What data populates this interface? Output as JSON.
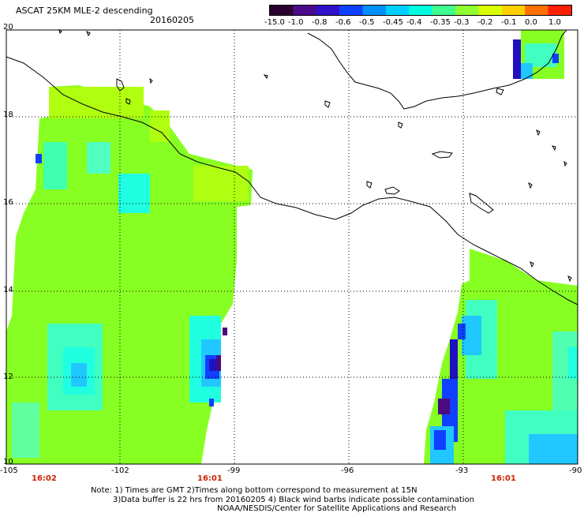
{
  "header": {
    "title": "ASCAT 25KM MLE-2 descending",
    "date": "20160205"
  },
  "colorbar": {
    "labels": [
      "-15.0",
      "-1.0",
      "-0.8",
      "-0.6",
      "-0.5",
      "-0.45",
      "-0.4",
      "-0.35",
      "-0.3",
      "-0.2",
      "-0.1",
      "0.0",
      "1.0"
    ],
    "colors": [
      "#2a0030",
      "#4a0a8a",
      "#3010c8",
      "#1040ff",
      "#0090ff",
      "#00d0ff",
      "#00ffe0",
      "#40ff90",
      "#90ff30",
      "#d8ff00",
      "#ffd000",
      "#ff7000",
      "#ff2000"
    ]
  },
  "axes": {
    "lon_labels": [
      "-105",
      "-102",
      "-99",
      "-96",
      "-93",
      "-90"
    ],
    "lat_labels": [
      "20",
      "18",
      "16",
      "14",
      "12",
      "10"
    ]
  },
  "times": [
    "16:02",
    "16:01",
    "16:01"
  ],
  "notes": {
    "line1": "Note: 1) Times are GMT 2)Times along bottom correspond to measurement at 15N",
    "line2": "3)Data buffer is 22 hrs from 20160205 4) Black wind barbs indicate possible contamination",
    "line3": "NOAA/NESDIS/Center for Satellite Applications and Research"
  }
}
